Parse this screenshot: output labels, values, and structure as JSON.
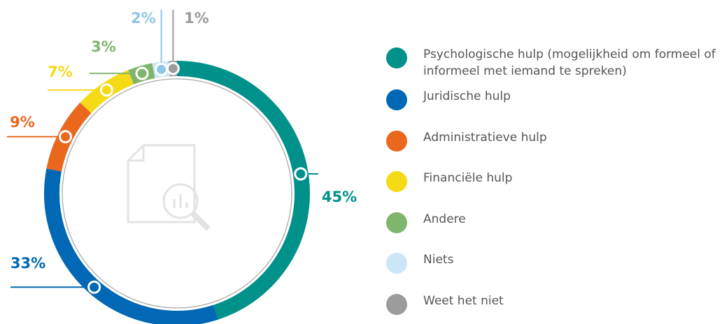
{
  "chart_data": {
    "type": "donut",
    "categories": [
      "Psychologische hulp (mogelijkheid om formeel of informeel met iemand te spreken)",
      "Juridische hulp",
      "Administratieve hulp",
      "Financiële hulp",
      "Andere",
      "Niets",
      "Weet het niet"
    ],
    "values": [
      45,
      33,
      9,
      7,
      3,
      2,
      1
    ],
    "value_labels": [
      "45%",
      "33%",
      "9%",
      "7%",
      "3%",
      "2%",
      "1%"
    ],
    "colors": [
      "#00918a",
      "#0068b4",
      "#e9681e",
      "#f5da16",
      "#7fb56d",
      "#cde6f7",
      "#9b9b9b"
    ]
  }
}
